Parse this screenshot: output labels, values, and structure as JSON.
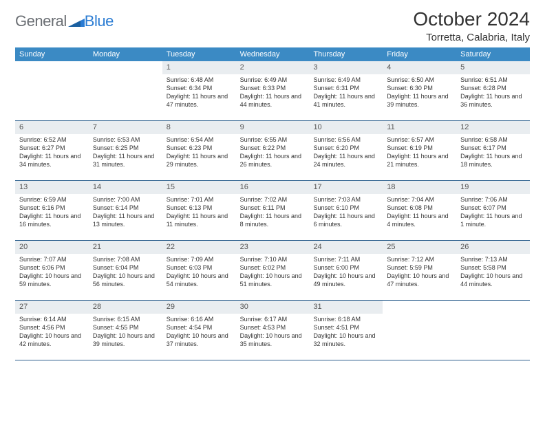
{
  "brand": {
    "name_part1": "General",
    "name_part2": "Blue"
  },
  "title": "October 2024",
  "location": "Torretta, Calabria, Italy",
  "colors": {
    "header_bg": "#3b8ac4",
    "header_text": "#ffffff",
    "daynum_bg": "#e9edf0",
    "week_border": "#2c5f8d",
    "logo_gray": "#6a6e73",
    "logo_blue": "#2b7cd3"
  },
  "day_headers": [
    "Sunday",
    "Monday",
    "Tuesday",
    "Wednesday",
    "Thursday",
    "Friday",
    "Saturday"
  ],
  "weeks": [
    [
      {
        "n": "",
        "sr": "",
        "ss": "",
        "dl": ""
      },
      {
        "n": "",
        "sr": "",
        "ss": "",
        "dl": ""
      },
      {
        "n": "1",
        "sr": "Sunrise: 6:48 AM",
        "ss": "Sunset: 6:34 PM",
        "dl": "Daylight: 11 hours and 47 minutes."
      },
      {
        "n": "2",
        "sr": "Sunrise: 6:49 AM",
        "ss": "Sunset: 6:33 PM",
        "dl": "Daylight: 11 hours and 44 minutes."
      },
      {
        "n": "3",
        "sr": "Sunrise: 6:49 AM",
        "ss": "Sunset: 6:31 PM",
        "dl": "Daylight: 11 hours and 41 minutes."
      },
      {
        "n": "4",
        "sr": "Sunrise: 6:50 AM",
        "ss": "Sunset: 6:30 PM",
        "dl": "Daylight: 11 hours and 39 minutes."
      },
      {
        "n": "5",
        "sr": "Sunrise: 6:51 AM",
        "ss": "Sunset: 6:28 PM",
        "dl": "Daylight: 11 hours and 36 minutes."
      }
    ],
    [
      {
        "n": "6",
        "sr": "Sunrise: 6:52 AM",
        "ss": "Sunset: 6:27 PM",
        "dl": "Daylight: 11 hours and 34 minutes."
      },
      {
        "n": "7",
        "sr": "Sunrise: 6:53 AM",
        "ss": "Sunset: 6:25 PM",
        "dl": "Daylight: 11 hours and 31 minutes."
      },
      {
        "n": "8",
        "sr": "Sunrise: 6:54 AM",
        "ss": "Sunset: 6:23 PM",
        "dl": "Daylight: 11 hours and 29 minutes."
      },
      {
        "n": "9",
        "sr": "Sunrise: 6:55 AM",
        "ss": "Sunset: 6:22 PM",
        "dl": "Daylight: 11 hours and 26 minutes."
      },
      {
        "n": "10",
        "sr": "Sunrise: 6:56 AM",
        "ss": "Sunset: 6:20 PM",
        "dl": "Daylight: 11 hours and 24 minutes."
      },
      {
        "n": "11",
        "sr": "Sunrise: 6:57 AM",
        "ss": "Sunset: 6:19 PM",
        "dl": "Daylight: 11 hours and 21 minutes."
      },
      {
        "n": "12",
        "sr": "Sunrise: 6:58 AM",
        "ss": "Sunset: 6:17 PM",
        "dl": "Daylight: 11 hours and 18 minutes."
      }
    ],
    [
      {
        "n": "13",
        "sr": "Sunrise: 6:59 AM",
        "ss": "Sunset: 6:16 PM",
        "dl": "Daylight: 11 hours and 16 minutes."
      },
      {
        "n": "14",
        "sr": "Sunrise: 7:00 AM",
        "ss": "Sunset: 6:14 PM",
        "dl": "Daylight: 11 hours and 13 minutes."
      },
      {
        "n": "15",
        "sr": "Sunrise: 7:01 AM",
        "ss": "Sunset: 6:13 PM",
        "dl": "Daylight: 11 hours and 11 minutes."
      },
      {
        "n": "16",
        "sr": "Sunrise: 7:02 AM",
        "ss": "Sunset: 6:11 PM",
        "dl": "Daylight: 11 hours and 8 minutes."
      },
      {
        "n": "17",
        "sr": "Sunrise: 7:03 AM",
        "ss": "Sunset: 6:10 PM",
        "dl": "Daylight: 11 hours and 6 minutes."
      },
      {
        "n": "18",
        "sr": "Sunrise: 7:04 AM",
        "ss": "Sunset: 6:08 PM",
        "dl": "Daylight: 11 hours and 4 minutes."
      },
      {
        "n": "19",
        "sr": "Sunrise: 7:06 AM",
        "ss": "Sunset: 6:07 PM",
        "dl": "Daylight: 11 hours and 1 minute."
      }
    ],
    [
      {
        "n": "20",
        "sr": "Sunrise: 7:07 AM",
        "ss": "Sunset: 6:06 PM",
        "dl": "Daylight: 10 hours and 59 minutes."
      },
      {
        "n": "21",
        "sr": "Sunrise: 7:08 AM",
        "ss": "Sunset: 6:04 PM",
        "dl": "Daylight: 10 hours and 56 minutes."
      },
      {
        "n": "22",
        "sr": "Sunrise: 7:09 AM",
        "ss": "Sunset: 6:03 PM",
        "dl": "Daylight: 10 hours and 54 minutes."
      },
      {
        "n": "23",
        "sr": "Sunrise: 7:10 AM",
        "ss": "Sunset: 6:02 PM",
        "dl": "Daylight: 10 hours and 51 minutes."
      },
      {
        "n": "24",
        "sr": "Sunrise: 7:11 AM",
        "ss": "Sunset: 6:00 PM",
        "dl": "Daylight: 10 hours and 49 minutes."
      },
      {
        "n": "25",
        "sr": "Sunrise: 7:12 AM",
        "ss": "Sunset: 5:59 PM",
        "dl": "Daylight: 10 hours and 47 minutes."
      },
      {
        "n": "26",
        "sr": "Sunrise: 7:13 AM",
        "ss": "Sunset: 5:58 PM",
        "dl": "Daylight: 10 hours and 44 minutes."
      }
    ],
    [
      {
        "n": "27",
        "sr": "Sunrise: 6:14 AM",
        "ss": "Sunset: 4:56 PM",
        "dl": "Daylight: 10 hours and 42 minutes."
      },
      {
        "n": "28",
        "sr": "Sunrise: 6:15 AM",
        "ss": "Sunset: 4:55 PM",
        "dl": "Daylight: 10 hours and 39 minutes."
      },
      {
        "n": "29",
        "sr": "Sunrise: 6:16 AM",
        "ss": "Sunset: 4:54 PM",
        "dl": "Daylight: 10 hours and 37 minutes."
      },
      {
        "n": "30",
        "sr": "Sunrise: 6:17 AM",
        "ss": "Sunset: 4:53 PM",
        "dl": "Daylight: 10 hours and 35 minutes."
      },
      {
        "n": "31",
        "sr": "Sunrise: 6:18 AM",
        "ss": "Sunset: 4:51 PM",
        "dl": "Daylight: 10 hours and 32 minutes."
      },
      {
        "n": "",
        "sr": "",
        "ss": "",
        "dl": ""
      },
      {
        "n": "",
        "sr": "",
        "ss": "",
        "dl": ""
      }
    ]
  ]
}
